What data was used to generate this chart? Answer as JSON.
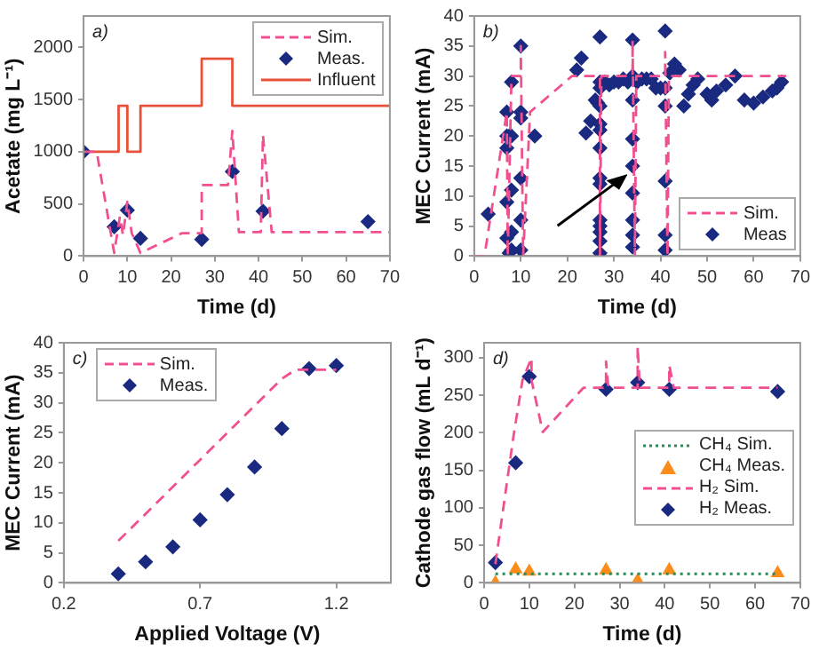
{
  "chart_data": [
    {
      "type": "line",
      "annotations": [
        "a)"
      ],
      "xlabel": "Time (d)",
      "ylabel": "Acetate (mg L⁻¹)",
      "xlim": [
        0,
        70
      ],
      "xticks": [
        0,
        10,
        20,
        30,
        40,
        50,
        60,
        70
      ],
      "ylim": [
        0,
        2300
      ],
      "yticks": [
        0,
        500,
        1000,
        1500,
        2000
      ],
      "grid": false,
      "legend": "top right",
      "series": [
        {
          "name": "Sim.",
          "type": "line",
          "line_style": "dashed",
          "color": "#f0508f",
          "x": [
            0,
            3,
            7,
            8.3,
            9,
            10,
            11,
            13,
            22.5,
            27,
            27,
            33,
            34,
            35.5,
            40.5,
            41,
            43,
            70
          ],
          "values": [
            1000,
            1000,
            30,
            380,
            200,
            520,
            220,
            30,
            220,
            220,
            680,
            680,
            1200,
            230,
            230,
            1160,
            230,
            230
          ]
        },
        {
          "name": "Meas.",
          "type": "scatter",
          "marker": "diamond",
          "color": "#1a2a80",
          "x": [
            0,
            7,
            10,
            13,
            27,
            34,
            41,
            65
          ],
          "values": [
            1000,
            280,
            440,
            170,
            160,
            810,
            430,
            330
          ]
        },
        {
          "name": "Influent",
          "type": "line",
          "line_style": "solid",
          "color": "#e8503a",
          "x": [
            0,
            8,
            8,
            10,
            10,
            13,
            13,
            27,
            27,
            34,
            34,
            70
          ],
          "values": [
            1000,
            1000,
            1440,
            1440,
            1000,
            1000,
            1440,
            1440,
            1890,
            1890,
            1440,
            1440
          ]
        }
      ]
    },
    {
      "type": "line",
      "annotations": [
        "b)"
      ],
      "xlabel": "Time (d)",
      "ylabel": "MEC Current (mA)",
      "xlim": [
        0,
        70
      ],
      "xticks": [
        0,
        10,
        20,
        30,
        40,
        50,
        60,
        70
      ],
      "ylim": [
        0,
        40
      ],
      "yticks": [
        0,
        5,
        10,
        15,
        20,
        25,
        30,
        35,
        40
      ],
      "grid": false,
      "legend": "bottom right",
      "series": [
        {
          "name": "Sim.",
          "type": "line",
          "line_style": "dashed",
          "color": "#f0508f",
          "x": [
            0,
            2.2,
            7,
            7.2,
            8,
            10,
            10,
            10.5,
            12,
            21,
            27,
            27,
            27.3,
            34,
            34,
            34.5,
            34.8,
            41,
            41,
            41.5,
            41.8,
            67
          ],
          "values": [
            0,
            0,
            24,
            0,
            30,
            30,
            35,
            0,
            24,
            30,
            30,
            0,
            30,
            30,
            36,
            0,
            30,
            30,
            34,
            0,
            30,
            30
          ]
        },
        {
          "name": "Meas",
          "type": "scatter",
          "marker": "diamond",
          "color": "#1a2a80",
          "x": [
            3,
            7,
            7,
            7,
            7,
            7,
            7.5,
            7.5,
            8,
            8,
            8,
            8,
            8,
            10,
            10,
            10,
            10,
            10,
            10,
            13,
            22,
            23,
            24,
            25,
            26,
            26.5,
            27,
            27,
            27,
            27,
            27,
            27,
            27,
            27,
            27,
            27,
            27,
            27,
            27,
            27,
            28,
            29,
            30,
            31,
            32,
            33,
            34,
            34,
            34,
            34,
            34,
            34,
            34,
            34,
            34,
            35,
            36,
            37,
            38,
            39,
            40,
            41,
            41,
            41,
            41,
            41,
            41,
            42,
            43,
            44,
            45,
            46,
            47,
            48,
            50,
            51,
            52,
            54,
            56,
            58,
            60,
            62,
            64,
            65,
            66
          ],
          "values": [
            7,
            24,
            20,
            18,
            9,
            3,
            0.5,
            20,
            29,
            20,
            11,
            4,
            1,
            35,
            24,
            23,
            13,
            6,
            1,
            20,
            31,
            33,
            20.5,
            22.5,
            26,
            25.5,
            36.5,
            29,
            28,
            25,
            22,
            21,
            18,
            13,
            12,
            6,
            5,
            4,
            2.5,
            0.5,
            29,
            28.5,
            29,
            29,
            29.5,
            29,
            36,
            30,
            26,
            19.5,
            15,
            10.5,
            6,
            3.5,
            1.5,
            29,
            29.5,
            29.5,
            29.5,
            28,
            28,
            37.5,
            28,
            25,
            12.5,
            3.5,
            1,
            30.5,
            32,
            31,
            25,
            27,
            28.5,
            29.5,
            27,
            26,
            27.5,
            28.5,
            30,
            26,
            25.5,
            26.5,
            27.5,
            28,
            29
          ]
        }
      ]
    },
    {
      "type": "line",
      "annotations": [
        "c)"
      ],
      "xlabel": "Applied Voltage (V)",
      "ylabel": "MEC Current (mA)",
      "xlim": [
        0.2,
        1.4
      ],
      "xticks": [
        0.2,
        0.7,
        1.2
      ],
      "ylim": [
        0,
        40
      ],
      "yticks": [
        0,
        5,
        10,
        15,
        20,
        25,
        30,
        35,
        40
      ],
      "grid": false,
      "legend": "top left",
      "series": [
        {
          "name": "Sim.",
          "type": "line",
          "line_style": "dashed",
          "color": "#f0508f",
          "x": [
            0.4,
            1.0,
            1.05,
            1.2
          ],
          "values": [
            7,
            34,
            35.5,
            35.5
          ]
        },
        {
          "name": "Meas.",
          "type": "scatter",
          "marker": "diamond",
          "color": "#1a2a80",
          "x": [
            0.4,
            0.5,
            0.6,
            0.7,
            0.8,
            0.9,
            1.0,
            1.1,
            1.2
          ],
          "values": [
            1.5,
            3.5,
            6,
            10.5,
            14.7,
            19.3,
            25.7,
            35.7,
            36.2
          ]
        }
      ]
    },
    {
      "type": "line",
      "annotations": [
        "d)"
      ],
      "xlabel": "Time (d)",
      "ylabel": "Cathode gas flow (mL d⁻¹)",
      "xlim": [
        0,
        70
      ],
      "xticks": [
        0,
        10,
        20,
        30,
        40,
        50,
        60,
        70
      ],
      "ylim": [
        0,
        320
      ],
      "yticks": [
        0,
        50,
        100,
        150,
        200,
        250,
        300
      ],
      "grid": false,
      "legend": "right",
      "series": [
        {
          "name": "CH₄ Sim.",
          "type": "line",
          "line_style": "dotted",
          "color": "#2e8b57",
          "x": [
            2.5,
            65
          ],
          "values": [
            12,
            12
          ]
        },
        {
          "name": "CH₄ Meas.",
          "type": "scatter",
          "marker": "triangle",
          "color": "#ff8c1a",
          "x": [
            2.5,
            7,
            10,
            27,
            34,
            41,
            65
          ],
          "values": [
            0,
            18,
            15,
            17,
            3,
            17,
            13
          ]
        },
        {
          "name": "H₂ Sim.",
          "type": "line",
          "line_style": "dashed",
          "color": "#f0508f",
          "x": [
            2.5,
            6.5,
            8.5,
            10.5,
            10.5,
            13,
            22,
            27,
            27,
            27.5,
            34,
            34,
            34.5,
            41,
            41,
            42,
            65
          ],
          "values": [
            25,
            195,
            270,
            300,
            270,
            201,
            260,
            260,
            295,
            260,
            260,
            315,
            260,
            260,
            290,
            260,
            260
          ]
        },
        {
          "name": "H₂ Meas.",
          "type": "scatter",
          "marker": "diamond",
          "color": "#1a2a80",
          "x": [
            2.5,
            7,
            10,
            27,
            34,
            41,
            65
          ],
          "values": [
            27,
            160,
            275,
            258,
            267,
            258,
            255
          ]
        }
      ]
    }
  ]
}
